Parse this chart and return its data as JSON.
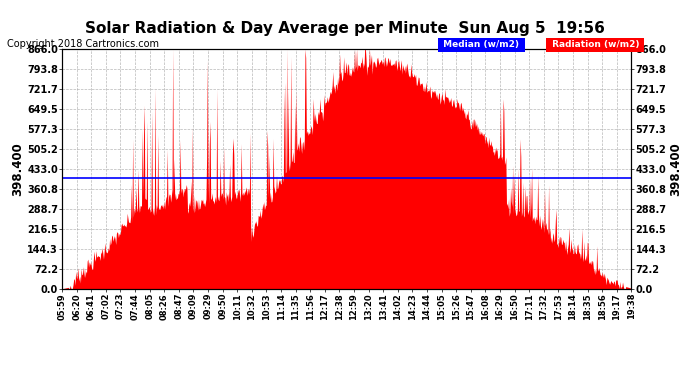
{
  "title": "Solar Radiation & Day Average per Minute  Sun Aug 5  19:56",
  "copyright": "Copyright 2018 Cartronics.com",
  "median_value": 398.4,
  "ymax": 866.0,
  "ymin": 0.0,
  "yticks": [
    0.0,
    72.2,
    144.3,
    216.5,
    288.7,
    360.8,
    433.0,
    505.2,
    577.3,
    649.5,
    721.7,
    793.8,
    866.0
  ],
  "left_ylabel": "398.400",
  "right_ylabel": "398.400",
  "fill_color": "#FF0000",
  "median_color": "#0000FF",
  "background_color": "#FFFFFF",
  "grid_color": "#999999",
  "legend_median_bg": "#0000FF",
  "legend_radiation_bg": "#FF0000",
  "legend_text_color": "#FFFFFF",
  "title_fontsize": 11,
  "copyright_fontsize": 7,
  "tick_fontsize": 7,
  "x_labels": [
    "05:59",
    "06:20",
    "06:41",
    "07:02",
    "07:23",
    "07:44",
    "08:05",
    "08:26",
    "08:47",
    "09:09",
    "09:29",
    "09:50",
    "10:11",
    "10:32",
    "10:53",
    "11:14",
    "11:35",
    "11:56",
    "12:17",
    "12:38",
    "12:59",
    "13:20",
    "13:41",
    "14:02",
    "14:23",
    "14:44",
    "15:05",
    "15:26",
    "15:47",
    "16:08",
    "16:29",
    "16:50",
    "17:11",
    "17:32",
    "17:53",
    "18:14",
    "18:35",
    "18:56",
    "19:17",
    "19:38"
  ]
}
